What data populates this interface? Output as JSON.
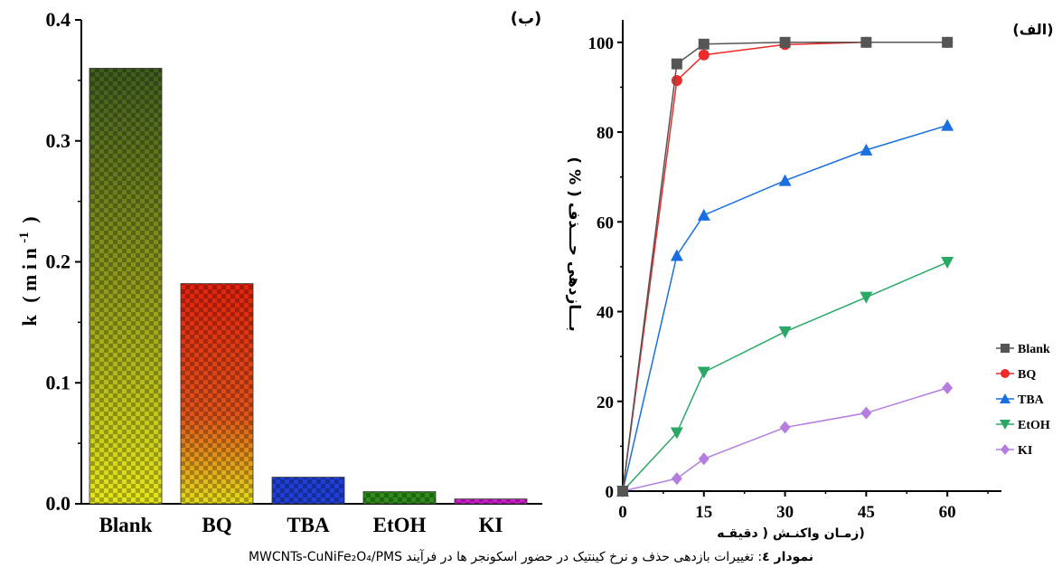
{
  "chart_data": [
    {
      "type": "bar",
      "panel_label": "(ب)",
      "categories": [
        "Blank",
        "BQ",
        "TBA",
        "EtOH",
        "KI"
      ],
      "values": [
        0.36,
        0.182,
        0.022,
        0.01,
        0.004
      ],
      "colors": [
        "#5c6d1a",
        "#cc2a10",
        "#1f3fd6",
        "#2e8c1a",
        "#d21cd2"
      ],
      "ylabel_main": "k",
      "ylabel_unit": "( m i n",
      "ylabel_sup": "-1",
      "ylabel_close": ")",
      "ylim": [
        0,
        0.4
      ],
      "yticks": [
        "0.0",
        "0.1",
        "0.2",
        "0.3",
        "0.4"
      ],
      "grid": false
    },
    {
      "type": "line",
      "panel_label": "(الف)",
      "x": [
        0,
        10,
        15,
        30,
        45,
        60
      ],
      "xticks": [
        "0",
        "15",
        "30",
        "45",
        "60"
      ],
      "xlim": [
        0,
        70
      ],
      "yticks": [
        "0",
        "20",
        "40",
        "60",
        "80",
        "100"
      ],
      "ylim": [
        0,
        105
      ],
      "xlabel": "(زمـان واکنـش ( دقیقـه",
      "ylabel": "بـــازدهی حـــذف ( % )",
      "legend_position": "right",
      "series": [
        {
          "name": "Blank",
          "color": "#555555",
          "marker": "square",
          "values": [
            0,
            95.2,
            99.6,
            100,
            100,
            100
          ]
        },
        {
          "name": "BQ",
          "color": "#ee2a2a",
          "marker": "circle",
          "values": [
            0,
            91.5,
            97.2,
            99.5,
            100,
            100
          ]
        },
        {
          "name": "TBA",
          "color": "#1a6fe0",
          "marker": "triangle-up",
          "values": [
            0,
            52.5,
            61.5,
            69.2,
            76,
            81.5
          ]
        },
        {
          "name": "EtOH",
          "color": "#2aa866",
          "marker": "triangle-down",
          "values": [
            0,
            13,
            26.5,
            35.5,
            43.2,
            51
          ]
        },
        {
          "name": "KI",
          "color": "#b57de0",
          "marker": "diamond",
          "values": [
            0,
            2.8,
            7.2,
            14.2,
            17.4,
            23
          ]
        }
      ]
    }
  ],
  "caption": {
    "label": "نمودار ٤",
    "text": ": تغییرات بازدهی حذف و نرخ کینتیک در حضور اسکونجر ها در فرآیند MWCNTs-CuNiFe₂O₄/PMS"
  }
}
